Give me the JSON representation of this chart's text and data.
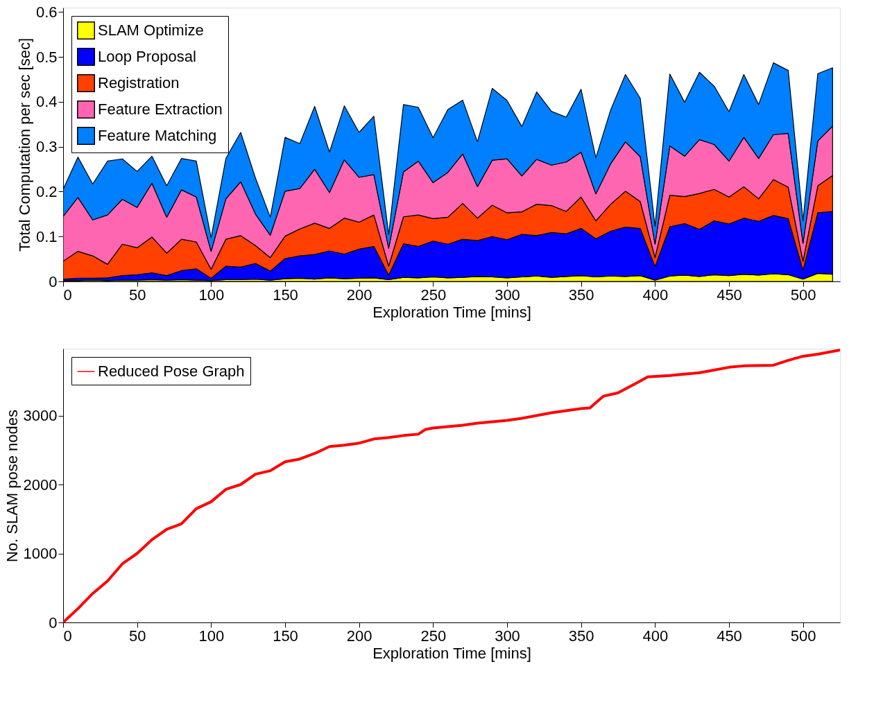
{
  "chart_data": [
    {
      "type": "area",
      "stacked": true,
      "xlabel": "Exploration Time [mins]",
      "ylabel": "Total Computation per sec [sec]",
      "legend": "top left",
      "xlim": [
        0,
        525
      ],
      "ylim": [
        0,
        0.61
      ],
      "xticks": [
        0,
        50,
        100,
        150,
        200,
        250,
        300,
        350,
        400,
        450,
        500
      ],
      "yticks": [
        0,
        0.1,
        0.2,
        0.3,
        0.4,
        0.5,
        0.6
      ],
      "x": [
        0,
        10,
        20,
        30,
        40,
        50,
        60,
        70,
        80,
        90,
        100,
        110,
        120,
        130,
        140,
        150,
        160,
        170,
        180,
        190,
        200,
        210,
        220,
        230,
        240,
        250,
        260,
        270,
        280,
        290,
        300,
        310,
        320,
        330,
        340,
        350,
        360,
        370,
        380,
        390,
        400,
        410,
        420,
        430,
        440,
        450,
        460,
        470,
        480,
        490,
        500,
        510,
        520
      ],
      "series": [
        {
          "name": "SLAM Optimize",
          "color": "#ffff00",
          "values": [
            0.002,
            0.002,
            0.003,
            0.002,
            0.003,
            0.003,
            0.004,
            0.003,
            0.004,
            0.003,
            0.002,
            0.004,
            0.004,
            0.005,
            0.003,
            0.006,
            0.007,
            0.005,
            0.008,
            0.006,
            0.007,
            0.008,
            0.004,
            0.009,
            0.008,
            0.01,
            0.008,
            0.009,
            0.011,
            0.01,
            0.008,
            0.01,
            0.012,
            0.009,
            0.011,
            0.013,
            0.01,
            0.012,
            0.011,
            0.013,
            0.003,
            0.012,
            0.014,
            0.011,
            0.015,
            0.013,
            0.016,
            0.014,
            0.017,
            0.015,
            0.005,
            0.018,
            0.016
          ]
        },
        {
          "name": "Loop Proposal",
          "color": "#0000ff",
          "values": [
            0.003,
            0.005,
            0.004,
            0.006,
            0.01,
            0.012,
            0.015,
            0.01,
            0.02,
            0.025,
            0.005,
            0.03,
            0.028,
            0.035,
            0.02,
            0.045,
            0.05,
            0.055,
            0.06,
            0.055,
            0.065,
            0.07,
            0.01,
            0.075,
            0.07,
            0.08,
            0.075,
            0.085,
            0.08,
            0.09,
            0.085,
            0.095,
            0.09,
            0.1,
            0.095,
            0.105,
            0.085,
            0.1,
            0.11,
            0.105,
            0.03,
            0.11,
            0.115,
            0.105,
            0.12,
            0.115,
            0.125,
            0.12,
            0.13,
            0.125,
            0.02,
            0.135,
            0.14
          ]
        },
        {
          "name": "Registration",
          "color": "#ff4000",
          "values": [
            0.04,
            0.06,
            0.05,
            0.03,
            0.07,
            0.06,
            0.08,
            0.05,
            0.07,
            0.06,
            0.02,
            0.06,
            0.07,
            0.04,
            0.03,
            0.05,
            0.06,
            0.07,
            0.05,
            0.08,
            0.06,
            0.07,
            0.02,
            0.06,
            0.07,
            0.05,
            0.06,
            0.08,
            0.05,
            0.07,
            0.06,
            0.05,
            0.07,
            0.06,
            0.05,
            0.07,
            0.04,
            0.06,
            0.08,
            0.06,
            0.02,
            0.07,
            0.06,
            0.08,
            0.07,
            0.06,
            0.07,
            0.05,
            0.08,
            0.07,
            0.02,
            0.06,
            0.08
          ]
        },
        {
          "name": "Feature Extraction",
          "color": "#ff66b2",
          "values": [
            0.1,
            0.12,
            0.08,
            0.11,
            0.1,
            0.09,
            0.12,
            0.08,
            0.11,
            0.1,
            0.04,
            0.09,
            0.12,
            0.07,
            0.05,
            0.1,
            0.09,
            0.12,
            0.08,
            0.13,
            0.1,
            0.09,
            0.04,
            0.1,
            0.12,
            0.08,
            0.1,
            0.11,
            0.07,
            0.1,
            0.12,
            0.08,
            0.1,
            0.09,
            0.11,
            0.1,
            0.06,
            0.09,
            0.11,
            0.1,
            0.03,
            0.11,
            0.09,
            0.12,
            0.1,
            0.08,
            0.11,
            0.09,
            0.1,
            0.12,
            0.04,
            0.1,
            0.11
          ]
        },
        {
          "name": "Feature Matching",
          "color": "#0080ff",
          "values": [
            0.06,
            0.09,
            0.08,
            0.12,
            0.09,
            0.08,
            0.06,
            0.07,
            0.07,
            0.08,
            0.03,
            0.09,
            0.11,
            0.08,
            0.04,
            0.12,
            0.1,
            0.14,
            0.09,
            0.12,
            0.1,
            0.13,
            0.03,
            0.15,
            0.12,
            0.1,
            0.14,
            0.12,
            0.1,
            0.16,
            0.13,
            0.11,
            0.15,
            0.12,
            0.1,
            0.14,
            0.08,
            0.12,
            0.15,
            0.13,
            0.04,
            0.16,
            0.12,
            0.15,
            0.13,
            0.11,
            0.14,
            0.12,
            0.16,
            0.14,
            0.05,
            0.15,
            0.13
          ]
        }
      ]
    },
    {
      "type": "line",
      "xlabel": "Exploration Time [mins]",
      "ylabel": "No. SLAM pose nodes",
      "legend": "top left",
      "xlim": [
        0,
        525
      ],
      "ylim": [
        0,
        3970
      ],
      "xticks": [
        0,
        50,
        100,
        150,
        200,
        250,
        300,
        350,
        400,
        450,
        500
      ],
      "yticks": [
        0,
        1000,
        2000,
        3000
      ],
      "x": [
        0,
        10,
        20,
        30,
        40,
        50,
        60,
        70,
        80,
        90,
        100,
        110,
        120,
        130,
        140,
        150,
        160,
        170,
        180,
        190,
        200,
        210,
        220,
        230,
        240,
        245,
        250,
        260,
        270,
        280,
        290,
        300,
        310,
        320,
        330,
        340,
        350,
        356,
        365,
        375,
        390,
        395,
        410,
        430,
        450,
        460,
        480,
        490,
        500,
        510,
        520,
        525
      ],
      "series": [
        {
          "name": "Reduced Pose Graph",
          "color": "#ff0000",
          "values": [
            0,
            200,
            420,
            600,
            850,
            1000,
            1200,
            1350,
            1430,
            1650,
            1750,
            1930,
            2000,
            2150,
            2200,
            2330,
            2370,
            2450,
            2550,
            2570,
            2600,
            2660,
            2680,
            2710,
            2730,
            2800,
            2820,
            2840,
            2860,
            2890,
            2910,
            2930,
            2960,
            3000,
            3040,
            3070,
            3100,
            3110,
            3280,
            3330,
            3500,
            3560,
            3580,
            3620,
            3700,
            3720,
            3730,
            3800,
            3860,
            3890,
            3930,
            3950
          ]
        }
      ]
    }
  ]
}
